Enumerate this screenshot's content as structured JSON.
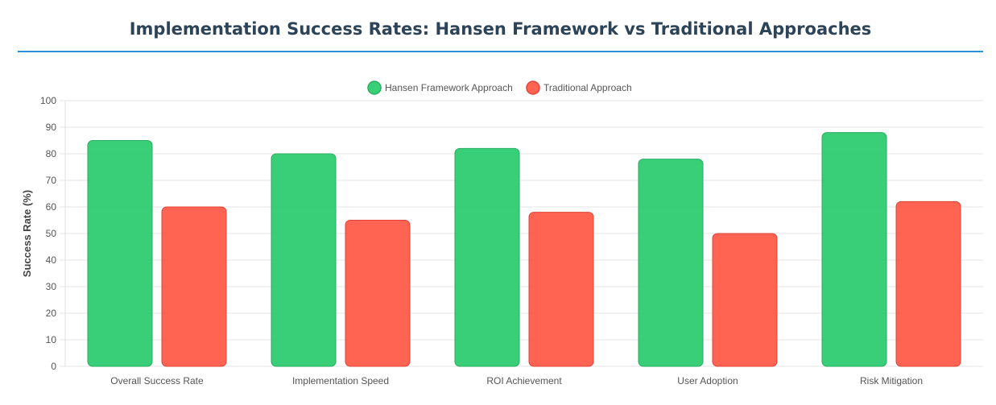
{
  "colors": {
    "hansen_fill": "rgba(46,204,113,0.95)",
    "hansen_stroke": "#27ae60",
    "trad_fill": "rgba(255,87,67,0.92)",
    "trad_stroke": "#e0443a",
    "title": "#2d4358",
    "rule": "#2e8fd1",
    "grid": "#e6e6e6"
  },
  "chart_data": {
    "type": "bar",
    "title": "Implementation Success Rates: Hansen Framework vs Traditional Approaches",
    "xlabel": "",
    "ylabel": "Success Rate (%)",
    "ylim": [
      0,
      100
    ],
    "yticks": [
      0,
      10,
      20,
      30,
      40,
      50,
      60,
      70,
      80,
      90,
      100
    ],
    "categories": [
      "Overall Success Rate",
      "Implementation Speed",
      "ROI Achievement",
      "User Adoption",
      "Risk Mitigation"
    ],
    "series": [
      {
        "name": "Hansen Framework Approach",
        "values": [
          85,
          80,
          82,
          78,
          88
        ]
      },
      {
        "name": "Traditional Approach",
        "values": [
          60,
          55,
          58,
          50,
          62
        ]
      }
    ],
    "legend": "top-center",
    "grid": true
  }
}
